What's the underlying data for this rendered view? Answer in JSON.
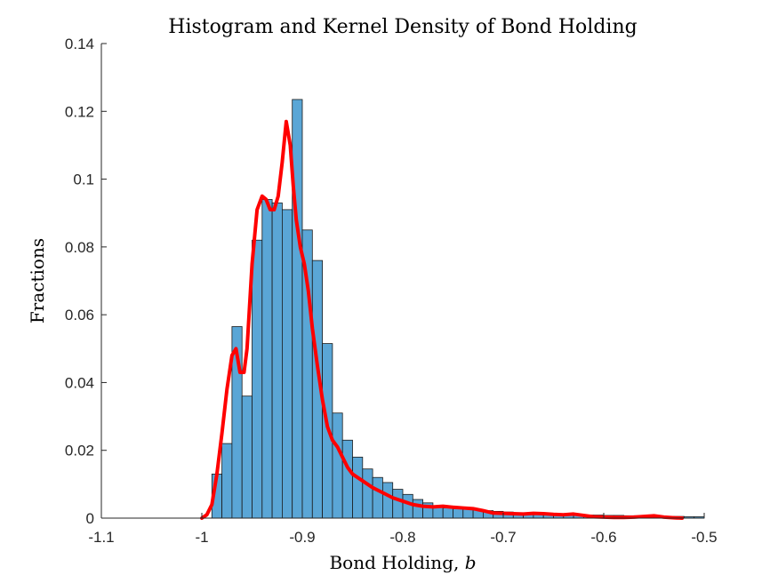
{
  "chart_data": {
    "type": "bar",
    "title": "Histogram and Kernel Density of Bond Holding",
    "xlabel": "Bond Holding, ",
    "xlabel_var": "b",
    "ylabel": "Fractions",
    "xlim": [
      -1.1,
      -0.5
    ],
    "ylim": [
      0,
      0.14
    ],
    "xticks": [
      -1.1,
      -1.0,
      -0.9,
      -0.8,
      -0.7,
      -0.6,
      -0.5
    ],
    "xtick_labels": [
      "-1.1",
      "-1",
      "-0.9",
      "-0.8",
      "-0.7",
      "-0.6",
      "-0.5"
    ],
    "yticks": [
      0,
      0.02,
      0.04,
      0.06,
      0.08,
      0.1,
      0.12,
      0.14
    ],
    "ytick_labels": [
      "0",
      "0.02",
      "0.04",
      "0.06",
      "0.08",
      "0.1",
      "0.12",
      "0.14"
    ],
    "grid": false,
    "histogram": {
      "name": "Histogram",
      "bin_start": -0.99,
      "bin_width": 0.01,
      "values": [
        0.013,
        0.022,
        0.0565,
        0.036,
        0.082,
        0.094,
        0.093,
        0.091,
        0.1235,
        0.085,
        0.076,
        0.0515,
        0.031,
        0.023,
        0.018,
        0.0145,
        0.012,
        0.0105,
        0.0085,
        0.007,
        0.0055,
        0.0045,
        0.0035,
        0.003,
        0.0028,
        0.0026,
        0.0024,
        0.0022,
        0.002,
        0.0018,
        0.0016,
        0.0014,
        0.0012,
        0.0012,
        0.0011,
        0.001,
        0.001,
        0.0009,
        0.0009,
        0.0008,
        0.0008,
        0.0007,
        0.0007,
        0.0006,
        0.0006,
        0.0005,
        0.0005,
        0.0004,
        0.0004
      ],
      "color": "#5aa6d6"
    },
    "kde": {
      "name": "Kernel Density",
      "color": "#ff0000",
      "x": [
        -1.0,
        -0.995,
        -0.99,
        -0.985,
        -0.98,
        -0.975,
        -0.97,
        -0.966,
        -0.962,
        -0.958,
        -0.955,
        -0.95,
        -0.945,
        -0.94,
        -0.936,
        -0.932,
        -0.928,
        -0.924,
        -0.92,
        -0.916,
        -0.912,
        -0.909,
        -0.906,
        -0.902,
        -0.898,
        -0.894,
        -0.89,
        -0.885,
        -0.88,
        -0.875,
        -0.87,
        -0.865,
        -0.86,
        -0.855,
        -0.85,
        -0.84,
        -0.83,
        -0.82,
        -0.81,
        -0.8,
        -0.79,
        -0.78,
        -0.77,
        -0.76,
        -0.75,
        -0.74,
        -0.73,
        -0.72,
        -0.71,
        -0.7,
        -0.69,
        -0.68,
        -0.67,
        -0.66,
        -0.65,
        -0.64,
        -0.63,
        -0.62,
        -0.61,
        -0.6,
        -0.59,
        -0.58,
        -0.57,
        -0.56,
        -0.55,
        -0.54,
        -0.53,
        -0.522
      ],
      "y": [
        0.0,
        0.001,
        0.004,
        0.013,
        0.025,
        0.038,
        0.048,
        0.05,
        0.043,
        0.043,
        0.05,
        0.075,
        0.091,
        0.095,
        0.094,
        0.091,
        0.091,
        0.095,
        0.105,
        0.117,
        0.11,
        0.098,
        0.088,
        0.08,
        0.075,
        0.067,
        0.056,
        0.045,
        0.035,
        0.027,
        0.023,
        0.021,
        0.018,
        0.015,
        0.013,
        0.011,
        0.009,
        0.0075,
        0.006,
        0.005,
        0.004,
        0.0035,
        0.0033,
        0.0035,
        0.0032,
        0.003,
        0.0028,
        0.0022,
        0.0015,
        0.0014,
        0.0013,
        0.0012,
        0.0014,
        0.0013,
        0.0011,
        0.001,
        0.0012,
        0.0008,
        0.0004,
        0.0003,
        0.0002,
        0.0002,
        0.0003,
        0.0005,
        0.0007,
        0.0003,
        0.0001,
        0.0
      ]
    }
  }
}
